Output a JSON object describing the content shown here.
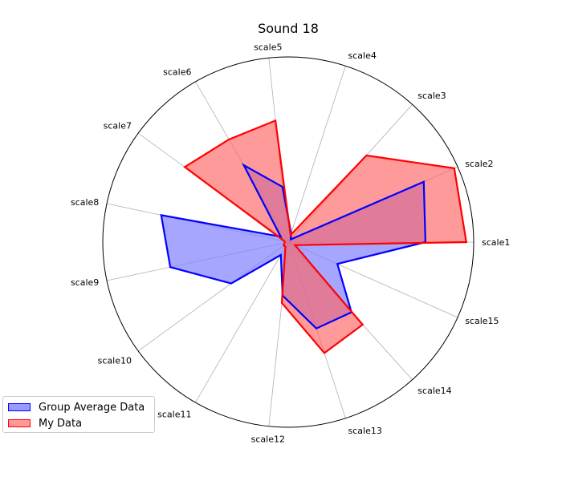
{
  "chart_data": {
    "type": "radar",
    "title": "Sound 18",
    "axes": [
      "scale1",
      "scale2",
      "scale3",
      "scale4",
      "scale5",
      "scale6",
      "scale7",
      "scale8",
      "scale9",
      "scale10",
      "scale11",
      "scale12",
      "scale13",
      "scale14",
      "scale15"
    ],
    "rlim": [
      0,
      1
    ],
    "grid": true,
    "legend_position": "bottom-left",
    "series": [
      {
        "name": "Group Average Data",
        "values": [
          0.74,
          0.8,
          0.02,
          0.05,
          0.3,
          0.48,
          0.05,
          0.7,
          0.65,
          0.38,
          0.08,
          0.29,
          0.49,
          0.51,
          0.29
        ],
        "color": "#0000ff",
        "fill": "#8080ff"
      },
      {
        "name": "My Data",
        "values": [
          0.96,
          0.98,
          0.63,
          0.04,
          0.66,
          0.64,
          0.69,
          0.02,
          0.02,
          0.03,
          0.03,
          0.33,
          0.63,
          0.6,
          0.04
        ],
        "color": "#ff0000",
        "fill": "#ff6464"
      }
    ]
  }
}
